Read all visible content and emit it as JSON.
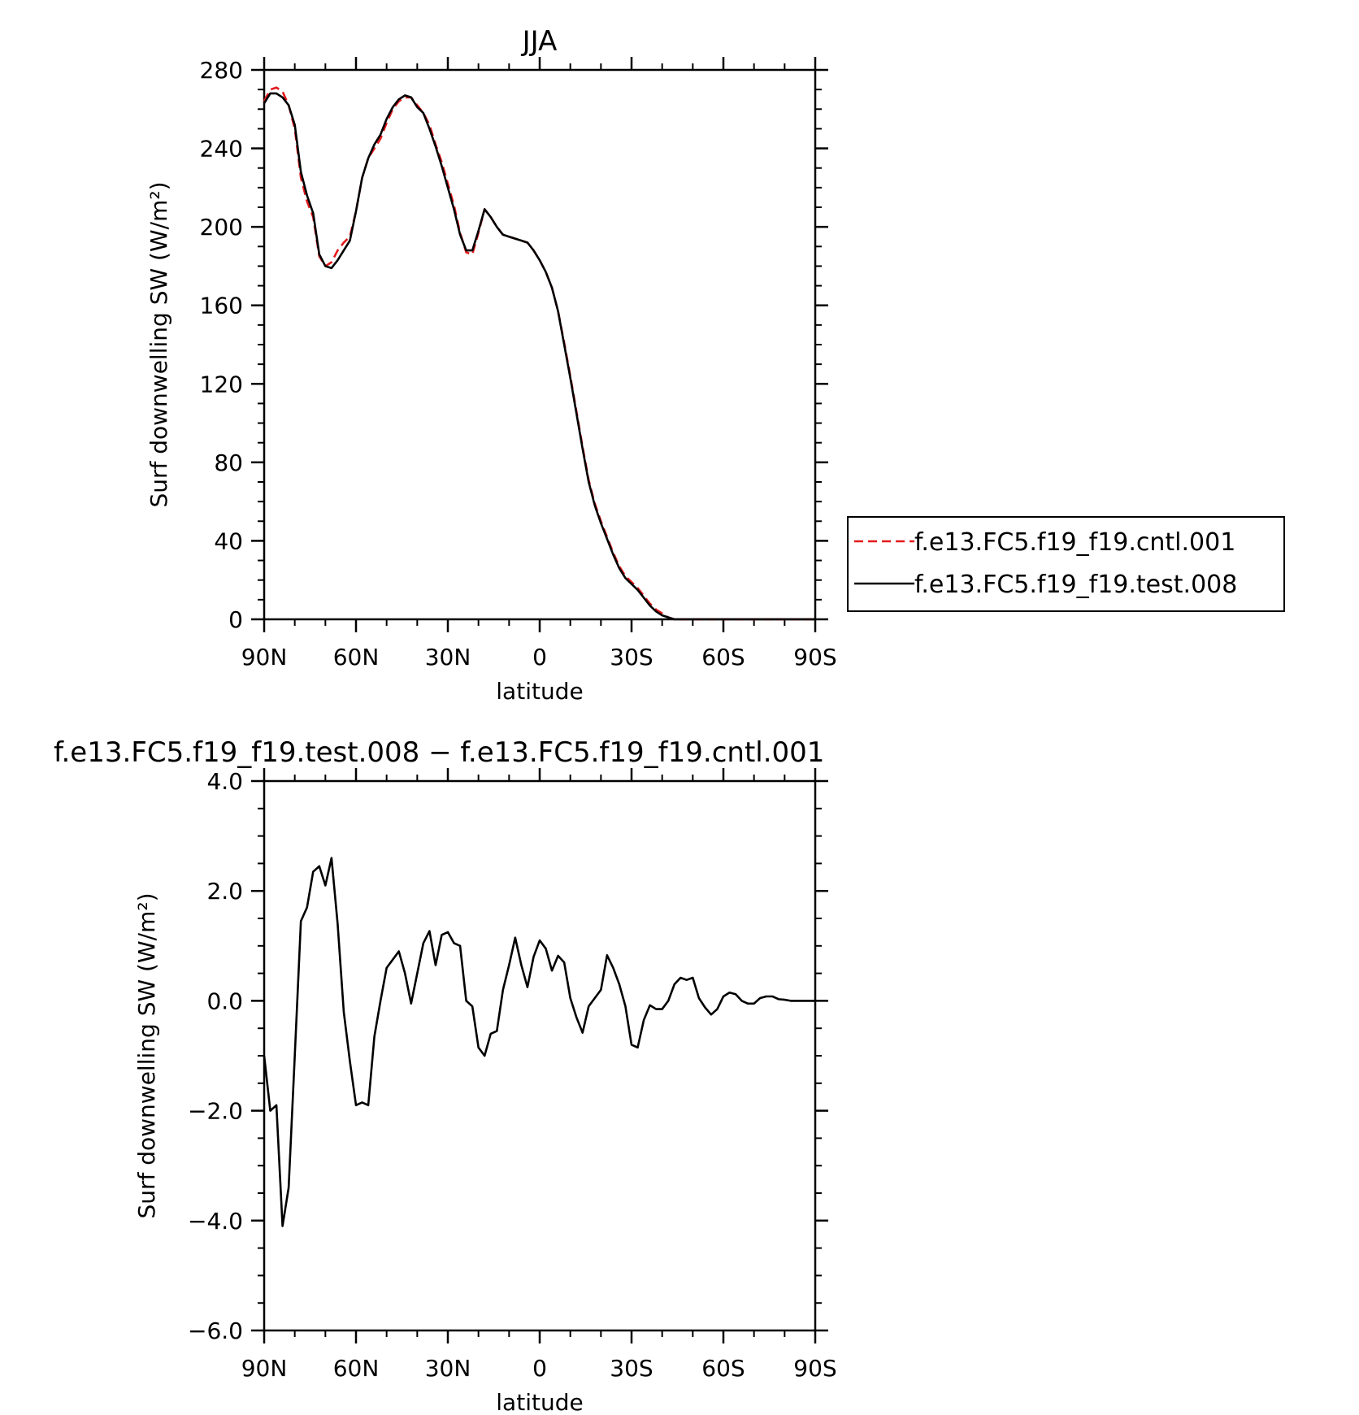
{
  "chart_data": [
    {
      "type": "line",
      "title": "JJA",
      "xlabel": "latitude",
      "ylabel": "Surf downwelling SW (W/m²)",
      "xlim": [
        90,
        -90
      ],
      "ylim": [
        0,
        280
      ],
      "xticks": [
        90,
        60,
        30,
        0,
        -30,
        -60,
        -90
      ],
      "xtick_labels": [
        "90N",
        "60N",
        "30N",
        "0",
        "30S",
        "60S",
        "90S"
      ],
      "yticks": [
        0,
        40,
        80,
        120,
        160,
        200,
        240,
        280
      ],
      "ytick_labels": [
        "0",
        "40",
        "80",
        "120",
        "160",
        "200",
        "240",
        "280"
      ],
      "legend_position": "right",
      "series": [
        {
          "name": "f.e13.FC5.f19_f19.cntl.001",
          "color": "#e31a1c",
          "dash": "dashed",
          "x": [
            90,
            88,
            86,
            84,
            82,
            80,
            78,
            76,
            74,
            72,
            70,
            68,
            66,
            64,
            62,
            60,
            58,
            56,
            54,
            52,
            50,
            48,
            46,
            44,
            42,
            40,
            38,
            36,
            34,
            32,
            30,
            28,
            26,
            24,
            22,
            20,
            18,
            16,
            14,
            12,
            10,
            8,
            6,
            4,
            2,
            0,
            -2,
            -4,
            -6,
            -8,
            -10,
            -12,
            -14,
            -16,
            -18,
            -20,
            -22,
            -24,
            -26,
            -28,
            -30,
            -32,
            -34,
            -36,
            -38,
            -40,
            -42,
            -44,
            -46,
            -48,
            -50,
            -52,
            -54,
            -56,
            -58,
            -60,
            -62,
            -64,
            -66,
            -68,
            -70,
            -72,
            -74,
            -76,
            -78,
            -80,
            -82,
            -84,
            -86,
            -88,
            -90
          ],
          "y": [
            264,
            270,
            271,
            269,
            262,
            250,
            225,
            213,
            205,
            185,
            180,
            182,
            188,
            192,
            195,
            208,
            225,
            235,
            240,
            245,
            253,
            260,
            264,
            266,
            266,
            262,
            258,
            252,
            242,
            233,
            222,
            211,
            197,
            187,
            186,
            197,
            209,
            205,
            200,
            196,
            195,
            194,
            193,
            192,
            188,
            183,
            177,
            169,
            157,
            141,
            124,
            106,
            88,
            71,
            59,
            50,
            42,
            34,
            27,
            22,
            19,
            16,
            12,
            8,
            5,
            3,
            1,
            0,
            0,
            0,
            0,
            0,
            0,
            0,
            0,
            0,
            0,
            0,
            0,
            0,
            0,
            0,
            0,
            0,
            0,
            0,
            0,
            0,
            0,
            0,
            0
          ]
        },
        {
          "name": "f.e13.FC5.f19_f19.test.008",
          "color": "#000000",
          "dash": "solid",
          "x": [
            90,
            88,
            86,
            84,
            82,
            80,
            78,
            76,
            74,
            72,
            70,
            68,
            66,
            64,
            62,
            60,
            58,
            56,
            54,
            52,
            50,
            48,
            46,
            44,
            42,
            40,
            38,
            36,
            34,
            32,
            30,
            28,
            26,
            24,
            22,
            20,
            18,
            16,
            14,
            12,
            10,
            8,
            6,
            4,
            2,
            0,
            -2,
            -4,
            -6,
            -8,
            -10,
            -12,
            -14,
            -16,
            -18,
            -20,
            -22,
            -24,
            -26,
            -28,
            -30,
            -32,
            -34,
            -36,
            -38,
            -40,
            -42,
            -44,
            -46,
            -48,
            -50,
            -52,
            -54,
            -56,
            -58,
            -60,
            -62,
            -64,
            -66,
            -68,
            -70,
            -72,
            -74,
            -76,
            -78,
            -80,
            -82,
            -84,
            -86,
            -88,
            -90
          ],
          "y": [
            263,
            268,
            268,
            266,
            262,
            252,
            228,
            216,
            207,
            186,
            180,
            179,
            183,
            188,
            193,
            208,
            225,
            235,
            242,
            247,
            255,
            261,
            265,
            267,
            266,
            261,
            258,
            250,
            241,
            231,
            220,
            209,
            196,
            188,
            188,
            198,
            209,
            205,
            200,
            196,
            195,
            194,
            193,
            192,
            188,
            183,
            177,
            169,
            157,
            140,
            123,
            105,
            87,
            70,
            58,
            49,
            41,
            33,
            26,
            21,
            18,
            15,
            11,
            7,
            4,
            2,
            1,
            0,
            0,
            0,
            0,
            0,
            0,
            0,
            0,
            0,
            0,
            0,
            0,
            0,
            0,
            0,
            0,
            0,
            0,
            0,
            0,
            0,
            0,
            0,
            0
          ]
        }
      ]
    },
    {
      "type": "line",
      "title": "f.e13.FC5.f19_f19.test.008 − f.e13.FC5.f19_f19.cntl.001",
      "xlabel": "latitude",
      "ylabel": "Surf downwelling SW (W/m²)",
      "xlim": [
        90,
        -90
      ],
      "ylim": [
        -6,
        4
      ],
      "xticks": [
        90,
        60,
        30,
        0,
        -30,
        -60,
        -90
      ],
      "xtick_labels": [
        "90N",
        "60N",
        "30N",
        "0",
        "30S",
        "60S",
        "90S"
      ],
      "yticks": [
        -6,
        -4,
        -2,
        0,
        2,
        4
      ],
      "ytick_labels": [
        "−6.0",
        "−4.0",
        "−2.0",
        "0.0",
        "2.0",
        "4.0"
      ],
      "series": [
        {
          "name": "",
          "color": "#000000",
          "x": [
            90,
            88,
            86,
            84,
            82,
            80,
            78,
            76,
            74,
            72,
            70,
            68,
            66,
            64,
            62,
            60,
            58,
            56,
            54,
            52,
            50,
            48,
            46,
            44,
            42,
            40,
            38,
            36,
            34,
            32,
            30,
            28,
            26,
            24,
            22,
            20,
            18,
            16,
            14,
            12,
            10,
            8,
            6,
            4,
            2,
            0,
            -2,
            -4,
            -6,
            -8,
            -10,
            -12,
            -14,
            -16,
            -18,
            -20,
            -22,
            -24,
            -26,
            -28,
            -30,
            -32,
            -34,
            -36,
            -38,
            -40,
            -42,
            -44,
            -46,
            -48,
            -50,
            -52,
            -54,
            -56,
            -58,
            -60,
            -62,
            -64,
            -66,
            -68,
            -70,
            -72,
            -74,
            -76,
            -78,
            -80,
            -82,
            -84,
            -86,
            -88,
            -90
          ],
          "y": [
            -1.0,
            -2.0,
            -1.9,
            -4.1,
            -3.4,
            -1.0,
            1.45,
            1.7,
            2.35,
            2.45,
            2.1,
            2.6,
            1.4,
            -0.2,
            -1.1,
            -1.9,
            -1.85,
            -1.9,
            -0.65,
            -0.0,
            0.6,
            0.75,
            0.9,
            0.5,
            -0.05,
            0.5,
            1.05,
            1.27,
            0.65,
            1.2,
            1.25,
            1.05,
            1.0,
            0.0,
            -0.1,
            -0.85,
            -1.0,
            -0.6,
            -0.55,
            0.2,
            0.65,
            1.15,
            0.65,
            0.25,
            0.8,
            1.1,
            0.95,
            0.55,
            0.82,
            0.7,
            0.05,
            -0.3,
            -0.58,
            -0.1,
            0.05,
            0.2,
            0.83,
            0.6,
            0.3,
            -0.1,
            -0.8,
            -0.85,
            -0.35,
            -0.08,
            -0.15,
            -0.15,
            0.0,
            0.3,
            0.42,
            0.38,
            0.42,
            0.05,
            -0.12,
            -0.25,
            -0.15,
            0.08,
            0.15,
            0.12,
            0.0,
            -0.05,
            -0.05,
            0.05,
            0.08,
            0.08,
            0.03,
            0.02,
            0.0,
            0.0,
            0.0,
            0.0,
            0.0
          ]
        }
      ]
    }
  ]
}
